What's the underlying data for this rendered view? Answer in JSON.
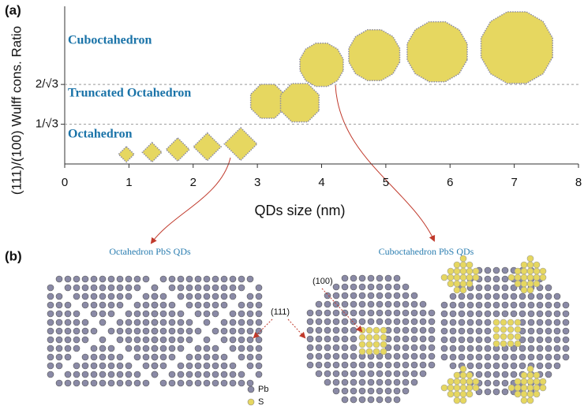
{
  "panel_labels": [
    "(a)",
    "(b)"
  ],
  "chart_data": {
    "type": "scatter",
    "x_label": "QDs size (nm)",
    "y_label": "(111)/(100) Wulff cons. Ratio",
    "annotations": [
      "Cuboctahedron",
      "Truncated Octahedron",
      "Octahedron"
    ],
    "series": [
      {
        "name": "Octahedron",
        "color": "#e6d760",
        "x": [
          0.96,
          1.36,
          1.76,
          2.22,
          2.74
        ],
        "values": [
          0.14,
          0.17,
          0.21,
          0.25,
          0.29
        ]
      },
      {
        "name": "Truncated Octahedron",
        "color": "#e6d760",
        "x": [
          3.16,
          3.66
        ],
        "values": [
          0.91,
          0.89
        ]
      },
      {
        "name": "Cuboctahedron",
        "color": "#e6d760",
        "x": [
          4.0,
          4.82,
          5.8,
          7.04
        ],
        "values": [
          1.44,
          1.58,
          1.63,
          1.69
        ]
      }
    ],
    "xlim": [
      0,
      8
    ],
    "xticks": [
      0,
      1,
      2,
      3,
      4,
      5,
      6,
      7,
      8
    ],
    "ylim": [
      0,
      2.29
    ],
    "yticks": [
      {
        "value": 0.577,
        "label": "1/√3"
      },
      {
        "value": 1.155,
        "label": "2/√3"
      }
    ],
    "grid": true
  },
  "diagram": {
    "left_title": "Octahedron PbS QDs",
    "right_title": "Cuboctahedron PbS QDs",
    "facet_labels": [
      "(100)",
      "(111)"
    ],
    "legend": [
      "Pb",
      "S"
    ]
  }
}
